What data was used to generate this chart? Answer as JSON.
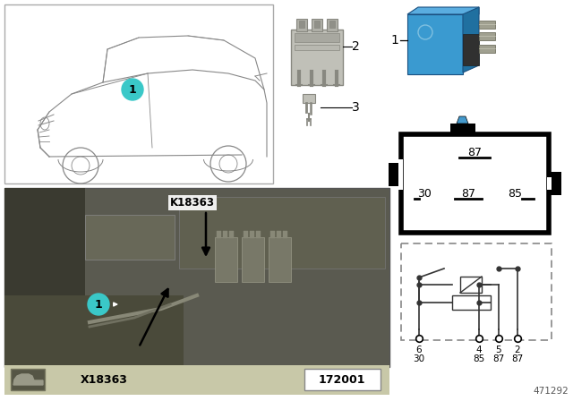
{
  "bg_color": "#ffffff",
  "part_number": "471292",
  "diagram_id": "172001",
  "location_code": "K18363",
  "connector_code": "X18363",
  "cyan_color": "#3ac8c8",
  "relay_blue_top": "#5aade0",
  "relay_blue_face": "#3a9ad0",
  "relay_blue_side": "#2070a0",
  "photo_bg": "#5a5a50",
  "photo_bg2": "#3a3a30",
  "bottom_bar": "#c8c8a8",
  "car_line": "#888888",
  "circuit_line": "#333333",
  "socket_gray": "#c0c0b8",
  "socket_dark": "#888880",
  "pin_metal": "#a0a090"
}
